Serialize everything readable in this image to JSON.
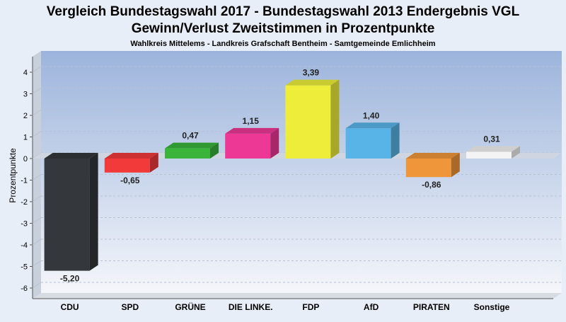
{
  "chart_data": {
    "type": "bar",
    "title_line1": "Vergleich Bundestagswahl 2017 - Bundestagswahl 2013 Endergebnis VGL",
    "title_line2": "Gewinn/Verlust Zweitstimmen in Prozentpunkte",
    "subtitle": "Wahlkreis Mittelems - Landkreis Grafschaft Bentheim - Samtgemeinde Emlichheim",
    "ylabel": "Prozentpunkte",
    "xlabel": "",
    "ylim": [
      -6,
      4.5
    ],
    "yticks": [
      4,
      3,
      2,
      1,
      0,
      -1,
      -2,
      -3,
      -4,
      -5,
      -6
    ],
    "categories": [
      "CDU",
      "SPD",
      "GRÜNE",
      "DIE LINKE.",
      "FDP",
      "AfD",
      "PIRATEN",
      "Sonstige"
    ],
    "values": [
      -5.2,
      -0.65,
      0.47,
      1.15,
      3.39,
      1.4,
      -0.86,
      0.31
    ],
    "value_labels": [
      "-5,20",
      "-0,65",
      "0,47",
      "1,15",
      "3,39",
      "1,40",
      "-0,86",
      "0,31"
    ],
    "colors": [
      "#34373b",
      "#f23a3a",
      "#3ab43a",
      "#ee3896",
      "#eeee3a",
      "#58b4e6",
      "#f0963a",
      "#f4f4f4"
    ],
    "grid": true
  }
}
